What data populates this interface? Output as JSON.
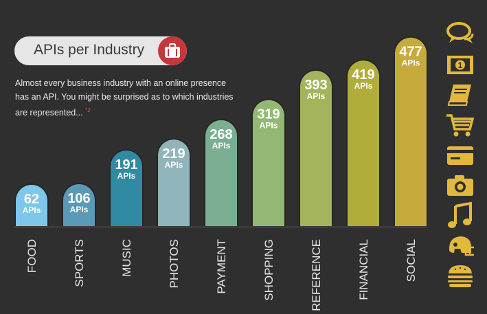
{
  "header": {
    "title": "APIs per Industry",
    "badge_icon": "briefcase-icon",
    "subtitle": "Almost every business industry with an online presence has an API.  You might be surprised as to which industries are represented...",
    "footnote": "*2"
  },
  "side_icons": [
    "speech-bubbles-icon",
    "money-icon",
    "book-icon",
    "shopping-cart-icon",
    "credit-card-icon",
    "camera-icon",
    "music-note-icon",
    "football-helmet-icon",
    "burger-icon"
  ],
  "colors": {
    "background": "#2f2f2f",
    "badge": "#c6373b",
    "icon": "#e3b93d"
  },
  "chart_data": {
    "type": "bar",
    "categories": [
      "FOOD",
      "SPORTS",
      "MUSIC",
      "PHOTOS",
      "PAYMENT",
      "SHOPPING",
      "REFERENCE",
      "FINANCIAL",
      "SOCIAL"
    ],
    "values": [
      62,
      106,
      191,
      219,
      268,
      319,
      393,
      419,
      477
    ],
    "value_unit_label": "APIs",
    "colors": [
      "#7ec6ec",
      "#5a9ab6",
      "#2f8aa2",
      "#8fb4b9",
      "#7aaf92",
      "#93b874",
      "#a4b45c",
      "#b1ad3a",
      "#c7aa3c"
    ],
    "grid": false,
    "legend": "none"
  }
}
